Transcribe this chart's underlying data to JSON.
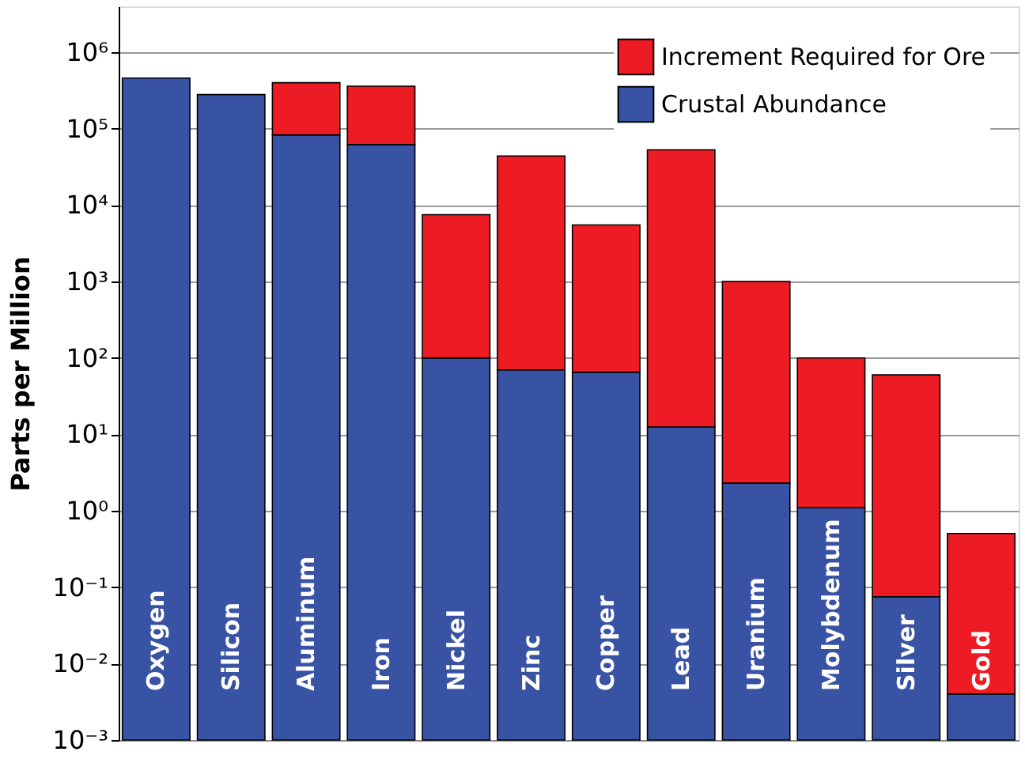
{
  "chart_data": {
    "type": "bar",
    "stacked": true,
    "log": true,
    "ylabel": "Parts per Million",
    "categories": [
      "Oxygen",
      "Silicon",
      "Aluminum",
      "Iron",
      "Nickel",
      "Zinc",
      "Copper",
      "Lead",
      "Uranium",
      "Molybdenum",
      "Silver",
      "Gold"
    ],
    "series": [
      {
        "name": "Crustal Abundance",
        "color": "#3953a4",
        "values": [
          460000,
          280000,
          83000,
          62000,
          100,
          70,
          65,
          12.5,
          2.3,
          1.1,
          0.075,
          0.004
        ]
      },
      {
        "name": "Increment Required for Ore",
        "color": "#ed1c24",
        "values": [
          null,
          null,
          317000,
          298000,
          7400,
          43930,
          5435,
          52988,
          998,
          99,
          60,
          0.5
        ]
      }
    ],
    "ylim": [
      0.001,
      4000000
    ],
    "yticks": [
      {
        "value": 0.001,
        "label": "10⁻³"
      },
      {
        "value": 0.01,
        "label": "10⁻²"
      },
      {
        "value": 0.1,
        "label": "10⁻¹"
      },
      {
        "value": 1,
        "label": "10⁰"
      },
      {
        "value": 10,
        "label": "10¹"
      },
      {
        "value": 100,
        "label": "10²"
      },
      {
        "value": 1000,
        "label": "10³"
      },
      {
        "value": 10000,
        "label": "10⁴"
      },
      {
        "value": 100000,
        "label": "10⁵"
      },
      {
        "value": 1000000,
        "label": "10⁶"
      }
    ],
    "grid": "y",
    "legend": "top right",
    "tick_labels": "y"
  }
}
